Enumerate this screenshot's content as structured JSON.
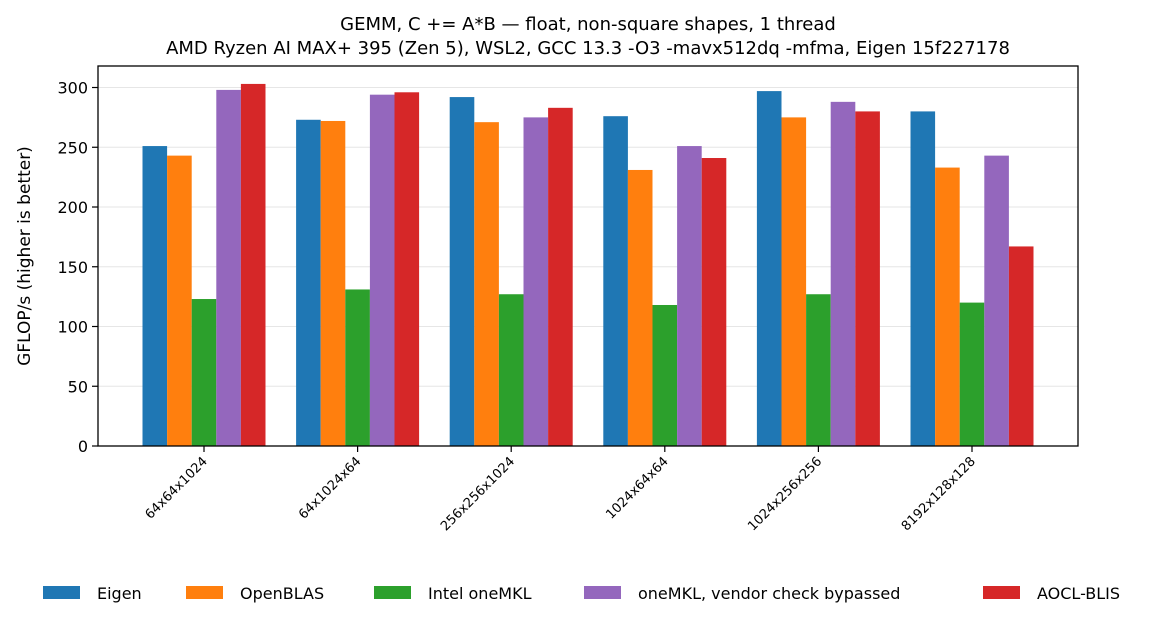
{
  "chart_data": {
    "type": "bar",
    "title": "GEMM, C += A*B — float, non-square shapes, 1 thread",
    "subtitle": "AMD Ryzen AI MAX+ 395 (Zen 5), WSL2, GCC 13.3 -O3 -mavx512dq -mfma, Eigen 15f227178",
    "xlabel": "",
    "ylabel": "GFLOP/s (higher is better)",
    "ylim": [
      0,
      318
    ],
    "yticks": [
      0,
      50,
      100,
      150,
      200,
      250,
      300
    ],
    "grid": "horizontal",
    "legend_position": "bottom",
    "categories": [
      "64x64x1024",
      "64x1024x64",
      "256x256x1024",
      "1024x64x64",
      "1024x256x256",
      "8192x128x128"
    ],
    "series": [
      {
        "name": "Eigen",
        "color": "#1f77b4",
        "values": [
          251,
          273,
          292,
          276,
          297,
          280
        ]
      },
      {
        "name": "OpenBLAS",
        "color": "#ff7f0e",
        "values": [
          243,
          272,
          271,
          231,
          275,
          233
        ]
      },
      {
        "name": "Intel oneMKL",
        "color": "#2ca02c",
        "values": [
          123,
          131,
          127,
          118,
          127,
          120
        ]
      },
      {
        "name": "oneMKL, vendor check bypassed",
        "color": "#9467bd",
        "values": [
          298,
          294,
          275,
          251,
          288,
          243
        ]
      },
      {
        "name": "AOCL-BLIS",
        "color": "#d62728",
        "values": [
          303,
          296,
          283,
          241,
          280,
          167
        ]
      }
    ]
  }
}
